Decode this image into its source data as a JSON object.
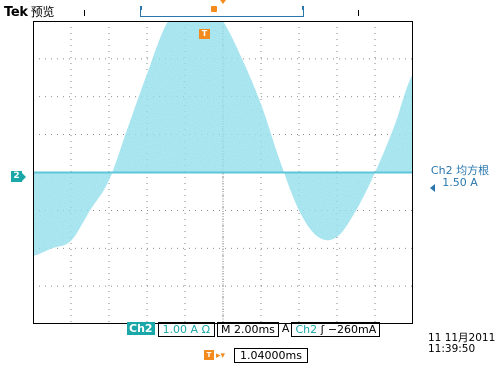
{
  "header": {
    "brand": "Tek",
    "mode": "预览"
  },
  "markers": {
    "trigger_position_label": "T",
    "channel_label": "2"
  },
  "measurement": {
    "line1": "Ch2 均方根",
    "line2": "1.50 A"
  },
  "status": {
    "channel": "Ch2",
    "vertical_scale": "1.00 A Ω",
    "timebase": "M 2.00ms",
    "acq_mode": "A",
    "trigger_source": "Ch2",
    "trigger_slope_symbol": "ʃ",
    "trigger_level": "−260mA"
  },
  "timestamp": {
    "date": "11 11月2011",
    "time": "11:39:50"
  },
  "delay": {
    "icon_label": "T",
    "value": "1.04000ms"
  },
  "colors": {
    "waveform": "#7fd7e6",
    "channel_teal": "#1aa7a8",
    "trigger_orange": "#f28a1e",
    "accent_blue": "#2a77ad"
  },
  "chart_data": {
    "type": "area",
    "series": [
      {
        "x_ms": [
          0,
          1,
          2,
          3,
          4,
          5,
          6,
          7,
          8,
          9,
          10,
          11,
          12,
          13,
          14,
          15,
          16,
          17,
          18,
          19,
          20
        ],
        "upper_divisions": [
          1.8,
          2.0,
          2.2,
          3.0,
          3.8,
          5.2,
          6.6,
          7.9,
          8.5,
          8.6,
          8.0,
          7.0,
          5.8,
          4.3,
          3.0,
          2.3,
          2.3,
          3.0,
          4.0,
          5.2,
          6.6
        ],
        "lower_divisions": [
          0,
          0,
          0,
          0,
          0,
          0,
          0,
          0,
          0,
          0,
          0,
          0,
          0,
          0,
          0,
          0,
          0,
          0,
          0,
          0,
          0
        ]
      }
    ],
    "xlim_ms": [
      0,
      20
    ],
    "ylim_divisions": [
      -4,
      4
    ],
    "grid": true
  }
}
